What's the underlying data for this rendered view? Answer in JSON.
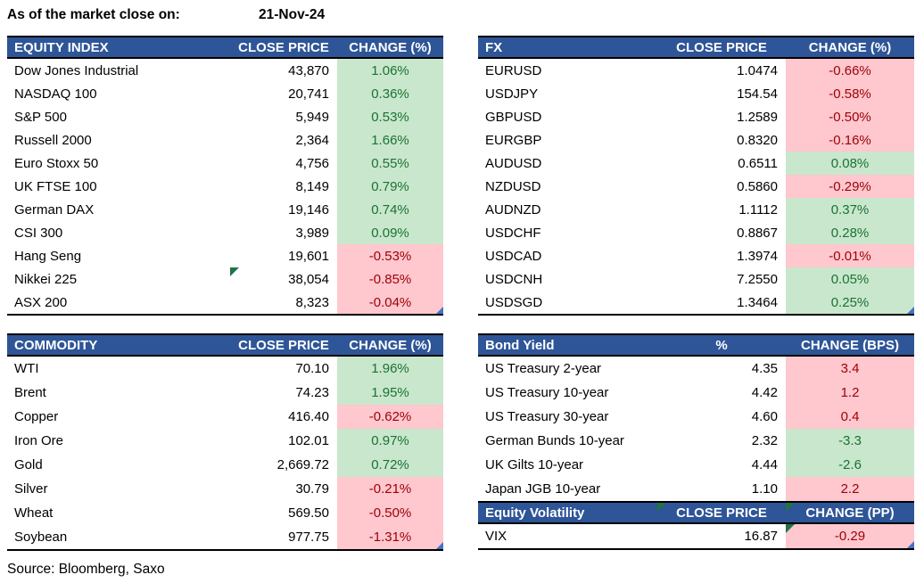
{
  "meta": {
    "as_of_label": "As of the market close on:",
    "date": "21-Nov-24",
    "source": "Source: Bloomberg, Saxo"
  },
  "colors": {
    "header-blue": "#2e5597",
    "green-bg": "#c9e7cc",
    "green-text": "#1a7235",
    "red-bg": "#ffc7ce",
    "red-text": "#9c0006",
    "flag-green": "#217346",
    "handle-blue": "#4472c4"
  },
  "tables": {
    "equity": {
      "title": "EQUITY INDEX",
      "col2": "CLOSE PRICE",
      "col3": "CHANGE (%)",
      "rows": [
        {
          "name": "Dow Jones Industrial",
          "price": "43,870",
          "change": "1.06%",
          "tone": "green"
        },
        {
          "name": "NASDAQ 100",
          "price": "20,741",
          "change": "0.36%",
          "tone": "green"
        },
        {
          "name": "S&P 500",
          "price": "5,949",
          "change": "0.53%",
          "tone": "green"
        },
        {
          "name": "Russell 2000",
          "price": "2,364",
          "change": "1.66%",
          "tone": "green"
        },
        {
          "name": "Euro Stoxx 50",
          "price": "4,756",
          "change": "0.55%",
          "tone": "green"
        },
        {
          "name": "UK FTSE 100",
          "price": "8,149",
          "change": "0.79%",
          "tone": "green"
        },
        {
          "name": "German DAX",
          "price": "19,146",
          "change": "0.74%",
          "tone": "green"
        },
        {
          "name": "CSI 300",
          "price": "3,989",
          "change": "0.09%",
          "tone": "green"
        },
        {
          "name": "Hang Seng",
          "price": "19,601",
          "change": "-0.53%",
          "tone": "red"
        },
        {
          "name": "Nikkei 225",
          "price": "38,054",
          "change": "-0.85%",
          "tone": "red",
          "price_flag": true
        },
        {
          "name": "ASX 200",
          "price": "8,323",
          "change": "-0.04%",
          "tone": "red"
        }
      ]
    },
    "fx": {
      "title": "FX",
      "col2": "CLOSE PRICE",
      "col3": "CHANGE (%)",
      "rows": [
        {
          "name": "EURUSD",
          "price": "1.0474",
          "change": "-0.66%",
          "tone": "red"
        },
        {
          "name": "USDJPY",
          "price": "154.54",
          "change": "-0.58%",
          "tone": "red"
        },
        {
          "name": "GBPUSD",
          "price": "1.2589",
          "change": "-0.50%",
          "tone": "red"
        },
        {
          "name": "EURGBP",
          "price": "0.8320",
          "change": "-0.16%",
          "tone": "red"
        },
        {
          "name": "AUDUSD",
          "price": "0.6511",
          "change": "0.08%",
          "tone": "green"
        },
        {
          "name": "NZDUSD",
          "price": "0.5860",
          "change": "-0.29%",
          "tone": "red"
        },
        {
          "name": "AUDNZD",
          "price": "1.1112",
          "change": "0.37%",
          "tone": "green"
        },
        {
          "name": "USDCHF",
          "price": "0.8867",
          "change": "0.28%",
          "tone": "green"
        },
        {
          "name": "USDCAD",
          "price": "1.3974",
          "change": "-0.01%",
          "tone": "red"
        },
        {
          "name": "USDCNH",
          "price": "7.2550",
          "change": "0.05%",
          "tone": "green"
        },
        {
          "name": "USDSGD",
          "price": "1.3464",
          "change": "0.25%",
          "tone": "green"
        }
      ]
    },
    "commodity": {
      "title": "COMMODITY",
      "col2": "CLOSE PRICE",
      "col3": "CHANGE (%)",
      "rows": [
        {
          "name": "WTI",
          "price": "70.10",
          "change": "1.96%",
          "tone": "green"
        },
        {
          "name": "Brent",
          "price": "74.23",
          "change": "1.95%",
          "tone": "green"
        },
        {
          "name": "Copper",
          "price": "416.40",
          "change": "-0.62%",
          "tone": "red"
        },
        {
          "name": "Iron Ore",
          "price": "102.01",
          "change": "0.97%",
          "tone": "green"
        },
        {
          "name": "Gold",
          "price": "2,669.72",
          "change": "0.72%",
          "tone": "green"
        },
        {
          "name": "Silver",
          "price": "30.79",
          "change": "-0.21%",
          "tone": "red"
        },
        {
          "name": "Wheat",
          "price": "569.50",
          "change": "-0.50%",
          "tone": "red"
        },
        {
          "name": "Soybean",
          "price": "977.75",
          "change": "-1.31%",
          "tone": "red"
        }
      ]
    },
    "bond": {
      "title": "Bond Yield",
      "col2": "%",
      "col3": "CHANGE (BPS)",
      "rows": [
        {
          "name": "US Treasury 2-year",
          "price": "4.35",
          "change": "3.4",
          "tone": "red"
        },
        {
          "name": "US Treasury 10-year",
          "price": "4.42",
          "change": "1.2",
          "tone": "red"
        },
        {
          "name": "US Treasury 30-year",
          "price": "4.60",
          "change": "0.4",
          "tone": "red"
        },
        {
          "name": "German Bunds 10-year",
          "price": "2.32",
          "change": "-3.3",
          "tone": "green"
        },
        {
          "name": "UK Gilts 10-year",
          "price": "4.44",
          "change": "-2.6",
          "tone": "green"
        },
        {
          "name": "Japan JGB 10-year",
          "price": "1.10",
          "change": "2.2",
          "tone": "red"
        }
      ]
    },
    "volatility": {
      "title": "Equity Volatility",
      "col2": "CLOSE PRICE",
      "col3": "CHANGE (PP)",
      "rows": [
        {
          "name": "VIX",
          "price": "16.87",
          "change": "-0.29",
          "tone": "red",
          "change_flag": true
        }
      ]
    }
  }
}
